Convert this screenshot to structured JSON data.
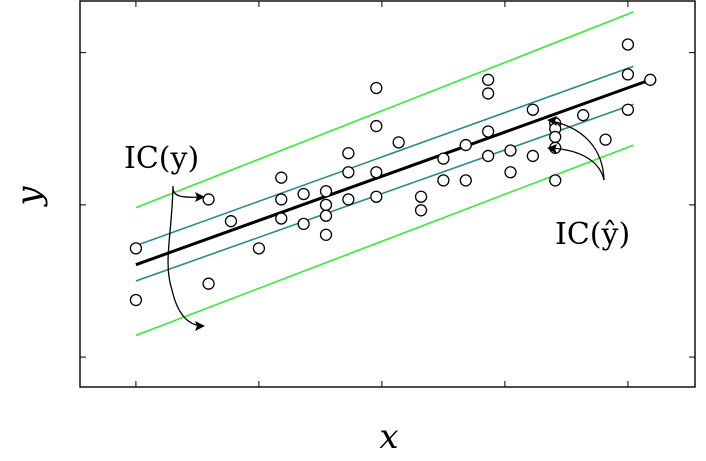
{
  "chart_data": {
    "type": "scatter",
    "title": "",
    "xlabel": "x",
    "ylabel": "y",
    "xlim": [
      -1.0,
      10.0
    ],
    "ylim": [
      -0.6,
      13.6
    ],
    "xticks": [
      0,
      2.2,
      4.4,
      6.6,
      8.8,
      11
    ],
    "yticks": [
      0.5,
      6.1,
      11.7
    ],
    "grid": false,
    "points": [
      [
        0,
        4.5
      ],
      [
        0,
        2.6
      ],
      [
        1.3,
        6.3
      ],
      [
        1.3,
        3.2
      ],
      [
        1.7,
        5.5
      ],
      [
        2.2,
        4.5
      ],
      [
        2.6,
        7.1
      ],
      [
        2.6,
        6.3
      ],
      [
        2.6,
        5.6
      ],
      [
        3.0,
        5.4
      ],
      [
        3.0,
        6.5
      ],
      [
        3.4,
        6.6
      ],
      [
        3.4,
        6.1
      ],
      [
        3.4,
        5.7
      ],
      [
        3.4,
        5.0
      ],
      [
        3.8,
        7.3
      ],
      [
        3.8,
        6.3
      ],
      [
        3.8,
        8.0
      ],
      [
        4.3,
        7.3
      ],
      [
        4.3,
        6.4
      ],
      [
        4.3,
        9.0
      ],
      [
        4.3,
        10.4
      ],
      [
        4.7,
        8.4
      ],
      [
        5.1,
        5.9
      ],
      [
        5.1,
        6.4
      ],
      [
        5.5,
        7.8
      ],
      [
        5.5,
        7.0
      ],
      [
        5.9,
        8.3
      ],
      [
        5.9,
        7.0
      ],
      [
        6.3,
        7.9
      ],
      [
        6.3,
        8.8
      ],
      [
        6.3,
        10.2
      ],
      [
        6.3,
        10.7
      ],
      [
        6.7,
        7.3
      ],
      [
        6.7,
        8.1
      ],
      [
        7.1,
        9.6
      ],
      [
        7.1,
        7.9
      ],
      [
        7.5,
        9.1
      ],
      [
        7.5,
        8.9
      ],
      [
        7.5,
        8.6
      ],
      [
        7.5,
        8.2
      ],
      [
        7.5,
        7.0
      ],
      [
        8.0,
        9.4
      ],
      [
        8.4,
        8.5
      ],
      [
        8.8,
        12.0
      ],
      [
        8.8,
        10.9
      ],
      [
        8.8,
        9.6
      ],
      [
        9.2,
        10.7
      ]
    ],
    "series": [
      {
        "type": "line",
        "role": "fit",
        "color": "#000000",
        "x": [
          0,
          9.2
        ],
        "y": [
          3.9,
          10.7
        ]
      },
      {
        "type": "line",
        "role": "pi-upper",
        "color": "#33ee33",
        "x": [
          0,
          8.9
        ],
        "y": [
          6.0,
          13.2
        ]
      },
      {
        "type": "line",
        "role": "pi-lower",
        "color": "#33ee33",
        "x": [
          0,
          8.9
        ],
        "y": [
          1.3,
          8.3
        ]
      },
      {
        "type": "line",
        "role": "ci-upper",
        "color": "#2a8a8a",
        "x": [
          0,
          8.9
        ],
        "y": [
          4.6,
          11.2
        ]
      },
      {
        "type": "line",
        "role": "ci-lower",
        "color": "#2a8a8a",
        "x": [
          0,
          8.9
        ],
        "y": [
          3.3,
          9.8
        ]
      }
    ],
    "annotations": [
      {
        "text": "IC(y)"
      },
      {
        "text": "IC(ŷ)"
      }
    ]
  }
}
